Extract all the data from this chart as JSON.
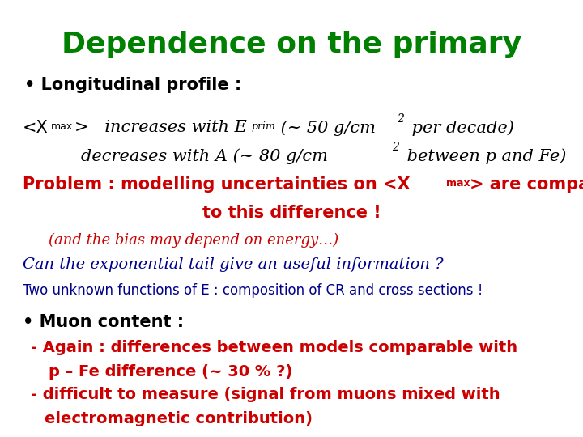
{
  "title": "Dependence on the primary",
  "title_color": "#008000",
  "bg_color": "#ffffff"
}
